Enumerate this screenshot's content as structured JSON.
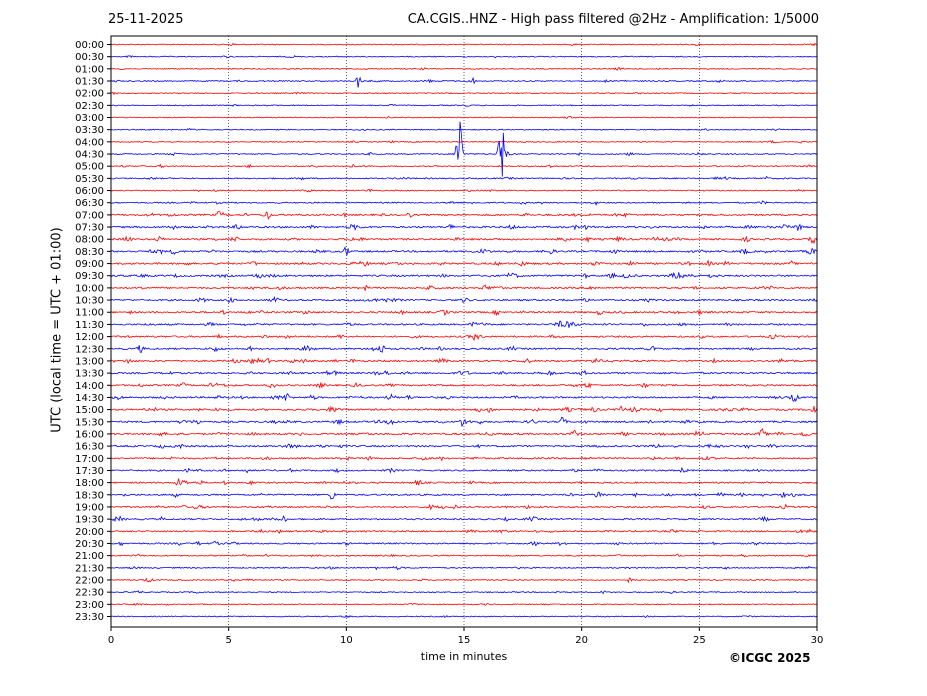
{
  "header": {
    "date": "25-11-2025",
    "title": "CA.CGIS..HNZ - High pass filtered @2Hz - Amplification: 1/5000"
  },
  "footer": {
    "copyright": "©ICGC 2025"
  },
  "chart_data": {
    "type": "line",
    "title": "CA.CGIS..HNZ - High pass filtered @2Hz - Amplification: 1/5000",
    "xlabel": "time in minutes",
    "ylabel": "UTC (local time = UTC + 01:00)",
    "xlim": [
      0,
      30
    ],
    "x_ticks": [
      0,
      5,
      10,
      15,
      20,
      25,
      30
    ],
    "x_tick_labels": [
      "0",
      "5",
      "10",
      "15",
      "20",
      "25",
      "30"
    ],
    "row_labels": [
      "00:00",
      "00:30",
      "01:00",
      "01:30",
      "02:00",
      "02:30",
      "03:00",
      "03:30",
      "04:00",
      "04:30",
      "05:00",
      "05:30",
      "06:00",
      "06:30",
      "07:00",
      "07:30",
      "08:00",
      "08:30",
      "09:00",
      "09:30",
      "10:00",
      "10:30",
      "11:00",
      "11:30",
      "12:00",
      "12:30",
      "13:00",
      "13:30",
      "14:00",
      "14:30",
      "15:00",
      "15:30",
      "16:00",
      "16:30",
      "17:00",
      "17:30",
      "18:00",
      "18:30",
      "19:00",
      "19:30",
      "20:00",
      "20:30",
      "21:00",
      "21:30",
      "22:00",
      "22:30",
      "23:00",
      "23:30"
    ],
    "row_colors": [
      "#0000ff",
      "#ff0000"
    ],
    "vertical_gridlines": true,
    "row_activity": [
      0.2,
      0.2,
      0.2,
      0.3,
      0.2,
      0.2,
      0.15,
      0.2,
      0.2,
      0.3,
      0.35,
      0.4,
      0.3,
      0.4,
      0.7,
      0.8,
      0.8,
      0.8,
      0.8,
      0.8,
      0.7,
      0.7,
      0.75,
      0.7,
      0.7,
      0.7,
      0.75,
      0.7,
      0.7,
      0.75,
      0.8,
      0.75,
      0.8,
      0.7,
      0.65,
      0.6,
      0.6,
      0.65,
      0.6,
      0.6,
      0.6,
      0.55,
      0.4,
      0.35,
      0.3,
      0.25,
      0.2,
      0.2
    ],
    "events": [
      {
        "time": "01:30",
        "minute": 10.5,
        "amplitude": 0.8
      },
      {
        "time": "01:30",
        "minute": 15.3,
        "amplitude": 0.8
      },
      {
        "time": "04:30",
        "minute": 14.8,
        "amplitude": 6.0
      },
      {
        "time": "04:30",
        "minute": 16.6,
        "amplitude": 5.0
      },
      {
        "time": "07:00",
        "minute": 6.6,
        "amplitude": 0.6
      },
      {
        "time": "08:30",
        "minute": 10.0,
        "amplitude": 0.6
      },
      {
        "time": "12:30",
        "minute": 11.5,
        "amplitude": 0.6
      },
      {
        "time": "14:30",
        "minute": 7.5,
        "amplitude": 0.6
      },
      {
        "time": "15:00",
        "minute": 29.9,
        "amplitude": 0.7
      },
      {
        "time": "15:30",
        "minute": 19.2,
        "amplitude": 0.6
      },
      {
        "time": "18:30",
        "minute": 9.4,
        "amplitude": 0.6
      },
      {
        "time": "19:30",
        "minute": 7.3,
        "amplitude": 0.5
      }
    ]
  }
}
